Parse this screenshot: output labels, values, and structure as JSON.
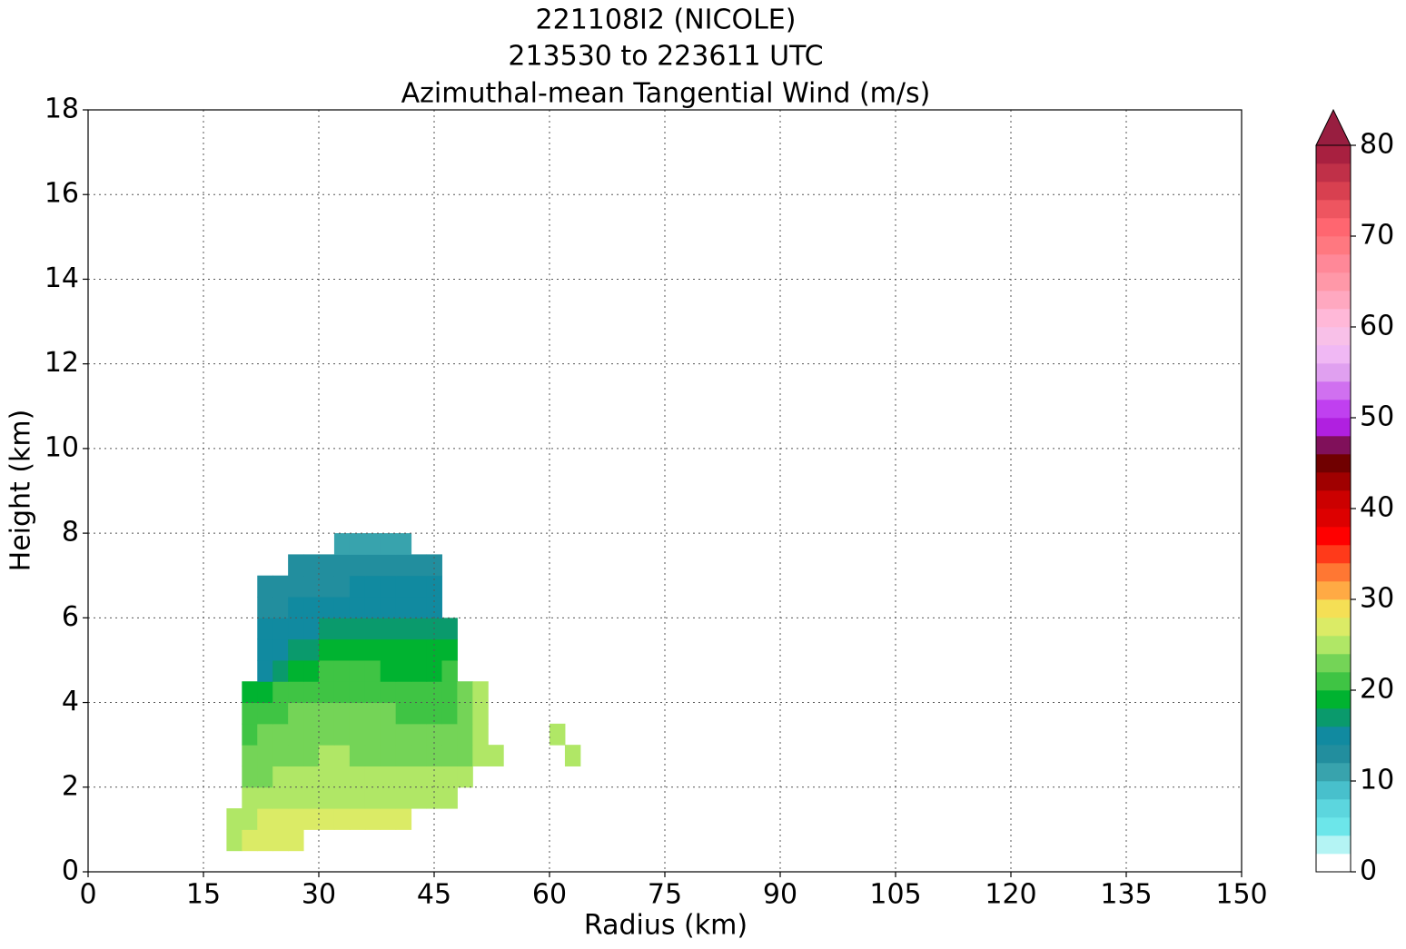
{
  "chart_data": {
    "type": "contour",
    "title": [
      "221108I2 (NICOLE)",
      "213530 to 223611 UTC",
      "Azimuthal-mean Tangential Wind (m/s)"
    ],
    "xlabel": "Radius (km)",
    "ylabel": "Height (km)",
    "x": [
      19,
      21,
      23,
      25,
      27,
      29,
      31,
      33,
      35,
      37,
      39,
      41,
      43,
      45,
      47,
      49,
      51,
      53,
      55,
      57,
      59,
      61,
      63
    ],
    "y": [
      0.75,
      1.25,
      1.75,
      2.25,
      2.75,
      3.25,
      3.75,
      4.25,
      4.75,
      5.25,
      5.75,
      6.25,
      6.75,
      7.25,
      7.75
    ],
    "z": [
      [
        25,
        26.5,
        27,
        27,
        27,
        null,
        null,
        null,
        null,
        null,
        null,
        null,
        null,
        null,
        null,
        null,
        null,
        null,
        null,
        null,
        null,
        null,
        null
      ],
      [
        25,
        25.5,
        26,
        26.5,
        26.5,
        27,
        27,
        27,
        27,
        27,
        27,
        27,
        null,
        null,
        null,
        null,
        null,
        null,
        null,
        null,
        null,
        null,
        null
      ],
      [
        null,
        24,
        24.5,
        25,
        25,
        25.5,
        25.5,
        25.5,
        25.5,
        25,
        25,
        25.5,
        25,
        25,
        25,
        null,
        null,
        null,
        null,
        null,
        null,
        null,
        null
      ],
      [
        null,
        23,
        23.5,
        24,
        24.5,
        24.5,
        25,
        25,
        25,
        25,
        24.5,
        24.5,
        24.5,
        24.5,
        24.5,
        24.5,
        null,
        null,
        null,
        null,
        null,
        null,
        null
      ],
      [
        null,
        22.5,
        23,
        23,
        23,
        23.5,
        24,
        24,
        23.5,
        23,
        23,
        23,
        23,
        23,
        23,
        23,
        24.5,
        25,
        null,
        null,
        null,
        null,
        24.5
      ],
      [
        null,
        21.5,
        22,
        22.5,
        23,
        23,
        23,
        23,
        23,
        22.5,
        22,
        22,
        22,
        22,
        22.5,
        23,
        24.5,
        null,
        null,
        null,
        null,
        25,
        null
      ],
      [
        null,
        20,
        21,
        21.5,
        22,
        22.5,
        23,
        23,
        23,
        22.5,
        22,
        21.5,
        21.5,
        21.5,
        21.5,
        22,
        24.5,
        null,
        null,
        null,
        null,
        null,
        null
      ],
      [
        null,
        19,
        19.5,
        20,
        20.5,
        21,
        21.5,
        21.5,
        21.5,
        21.5,
        21,
        21,
        21,
        21,
        21,
        22,
        24.5,
        null,
        null,
        null,
        null,
        null,
        null
      ],
      [
        null,
        null,
        15,
        17,
        18.5,
        19.5,
        20,
        20.5,
        20.5,
        20,
        19.5,
        19.5,
        19.5,
        19.5,
        20,
        null,
        null,
        null,
        null,
        null,
        null,
        null,
        null
      ],
      [
        null,
        null,
        14.5,
        15,
        16,
        17,
        18.5,
        19,
        19,
        19,
        19,
        19,
        19,
        18.5,
        18.5,
        null,
        null,
        null,
        null,
        null,
        null,
        null,
        null
      ],
      [
        null,
        null,
        14,
        14,
        14.5,
        15,
        16,
        17,
        17,
        17,
        17,
        17,
        17,
        17,
        17,
        null,
        null,
        null,
        null,
        null,
        null,
        null,
        null
      ],
      [
        null,
        null,
        13,
        13.5,
        14,
        14,
        14.5,
        15,
        15,
        15,
        15,
        15,
        15,
        15,
        null,
        null,
        null,
        null,
        null,
        null,
        null,
        null,
        null
      ],
      [
        null,
        null,
        13,
        13,
        13,
        13,
        13.5,
        13.5,
        14,
        14,
        14,
        14,
        14.5,
        14.5,
        null,
        null,
        null,
        null,
        null,
        null,
        null,
        null,
        null
      ],
      [
        null,
        null,
        null,
        null,
        13,
        13,
        13,
        13,
        13,
        12.5,
        12.5,
        12.5,
        12,
        12,
        null,
        null,
        null,
        null,
        null,
        null,
        null,
        null,
        null
      ],
      [
        null,
        null,
        null,
        null,
        null,
        null,
        null,
        11,
        11,
        11,
        11,
        11,
        null,
        null,
        null,
        null,
        null,
        null,
        null,
        null,
        null,
        null,
        null
      ]
    ],
    "xlim": [
      0,
      150
    ],
    "ylim": [
      0,
      18
    ],
    "xticks": [
      0,
      15,
      30,
      45,
      60,
      75,
      90,
      105,
      120,
      135,
      150
    ],
    "yticks": [
      0,
      2,
      4,
      6,
      8,
      10,
      12,
      14,
      16,
      18
    ],
    "grid": true,
    "colorbar": {
      "levels": [
        0,
        2,
        4,
        6,
        8,
        10,
        12,
        14,
        16,
        18,
        20,
        22,
        24,
        26,
        28,
        30,
        32,
        34,
        36,
        38,
        40,
        42,
        44,
        46,
        48,
        50,
        52,
        54,
        56,
        58,
        60,
        62,
        64,
        66,
        68,
        70,
        72,
        74,
        76,
        78,
        80
      ],
      "colors": [
        "#ffffff",
        "#b4f4f4",
        "#6ce6ea",
        "#5cd6de",
        "#48c0cc",
        "#38a3ad",
        "#228e9e",
        "#118aa0",
        "#0a9a6c",
        "#00b330",
        "#3fc444",
        "#74d457",
        "#b0e766",
        "#dbeb66",
        "#f5df55",
        "#ffaa44",
        "#ff7733",
        "#ff3a1a",
        "#ff0000",
        "#dd0000",
        "#cc0000",
        "#a00000",
        "#700000",
        "#80105a",
        "#b020e0",
        "#c040f0",
        "#d070f0",
        "#e0a0f0",
        "#f0b8f4",
        "#f8c0e8",
        "#ffb8d8",
        "#ffa8c0",
        "#ff98a8",
        "#ff8898",
        "#ff7880",
        "#ff6670",
        "#ee5560",
        "#d84050",
        "#c03048",
        "#a82040"
      ],
      "extend_color": "#981e40",
      "ticks": [
        0,
        10,
        20,
        30,
        40,
        50,
        60,
        70,
        80
      ]
    }
  }
}
